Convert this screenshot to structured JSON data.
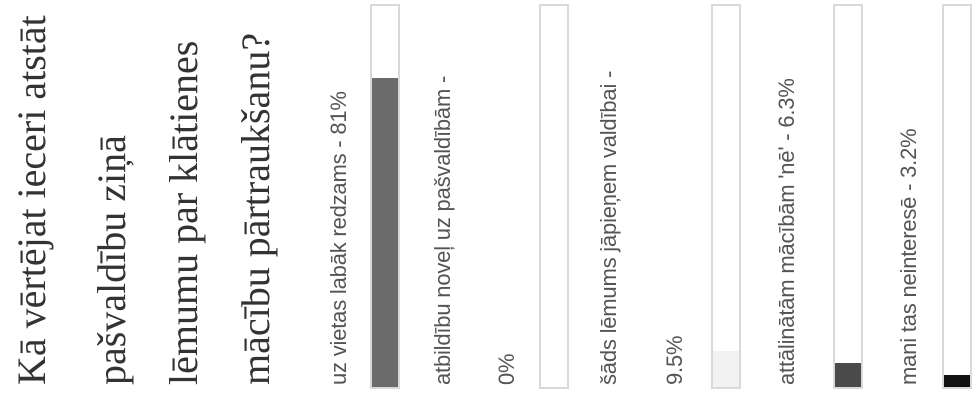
{
  "question": {
    "lines": [
      "Kā vērtējat ieceri atstāt",
      "pašvaldību ziņā",
      "lēmumu par klātienes",
      "mācību pārtraukšanu?"
    ]
  },
  "options": [
    {
      "label_lines": [
        "uz vietas labāk redzams - 81%"
      ]
    },
    {
      "label_lines": [
        "atbildību noveļ uz pašvaldībām -",
        "0%"
      ]
    },
    {
      "label_lines": [
        "šāds lēmums jāpieņem valdībai -",
        "9.5%"
      ]
    },
    {
      "label_lines": [
        "attālinātām mācībām 'nē' - 6.3%"
      ]
    },
    {
      "label_lines": [
        "mani tas neinteresē - 3.2%"
      ]
    }
  ],
  "chart_data": {
    "type": "bar",
    "title": "Kā vērtējat ieceri atstāt pašvaldību ziņā lēmumu par klātienes mācību pārtraukšanu?",
    "categories": [
      "uz vietas labāk redzams",
      "atbildību noveļ uz pašvaldībām",
      "šāds lēmums jāpieņem valdībai",
      "attālinātām mācībām 'nē'",
      "mani tas neinteresē"
    ],
    "values": [
      81,
      0,
      9.5,
      6.3,
      3.2
    ],
    "unit": "%",
    "ylim": [
      0,
      100
    ],
    "colors": [
      "#6b6b6b",
      "#6b6b6b",
      "#f2f2f2",
      "#4a4a4a",
      "#111111"
    ],
    "track_color": "#ffffff",
    "track_border_color": "#d9d9d9",
    "orientation": "vertical, page rotated 90° counter-clockwise",
    "grid": false,
    "legend": "none"
  }
}
